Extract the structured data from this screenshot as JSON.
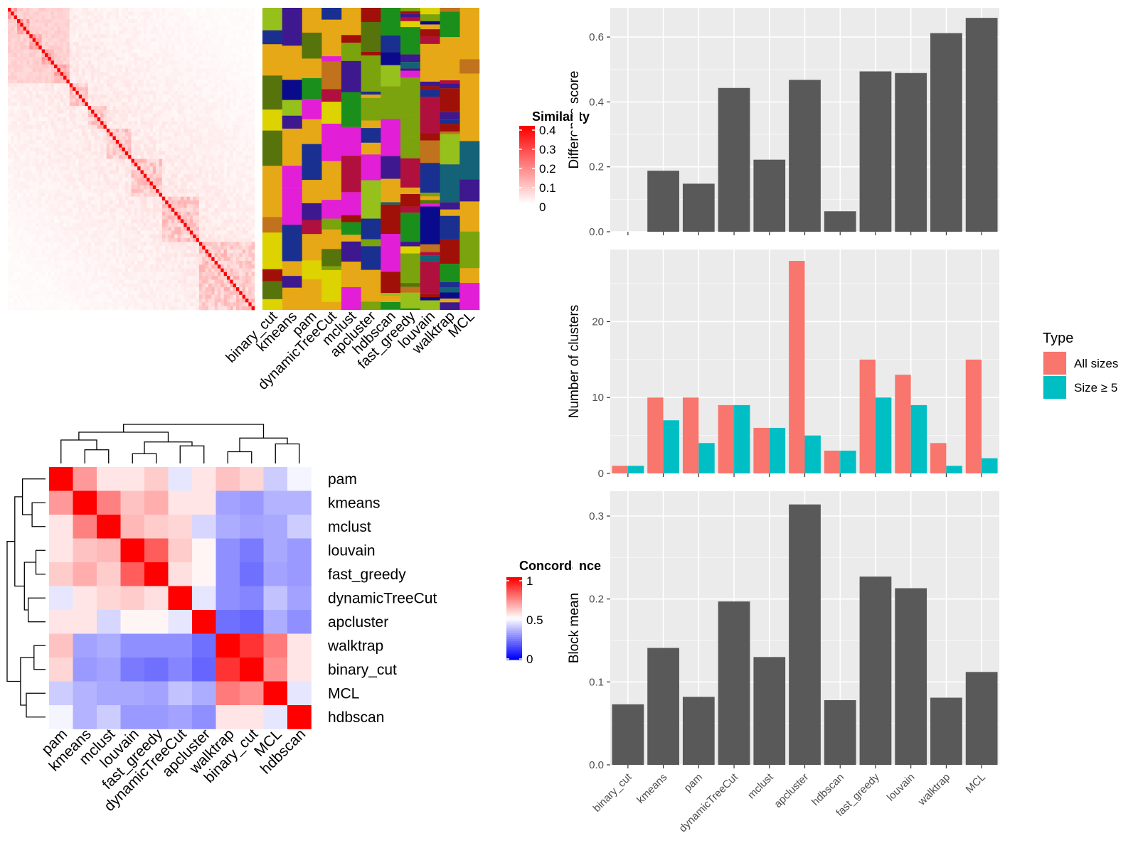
{
  "methods": [
    "binary_cut",
    "kmeans",
    "pam",
    "dynamicTreeCut",
    "mclust",
    "apcluster",
    "hdbscan",
    "fast_greedy",
    "louvain",
    "walktrap",
    "MCL"
  ],
  "similarity_heatmap": {
    "legend_title": "Similarity",
    "legend_ticks": [
      "0.4",
      "0.3",
      "0.2",
      "0.1",
      "0"
    ],
    "range": [
      0,
      0.4
    ],
    "color_low": "#FFFFFF",
    "color_high": "#FF0000"
  },
  "cluster_annotation": {
    "background": "#E6A817",
    "palette": [
      "#E6A817",
      "#DDD300",
      "#A01008",
      "#B0103E",
      "#0A0A8C",
      "#136277",
      "#7AA30E",
      "#56730C",
      "#3D188E",
      "#E21ED6",
      "#C0721C",
      "#1B8F1B",
      "#1A3090",
      "#96C01C"
    ]
  },
  "concordance_heatmap": {
    "legend_title": "Concordance",
    "legend_ticks": [
      "1",
      "0.5",
      "0"
    ],
    "range": [
      0,
      1
    ],
    "color_low": "#0000FF",
    "color_mid": "#FFFFFF",
    "color_high": "#FF0000",
    "order": [
      "pam",
      "kmeans",
      "mclust",
      "louvain",
      "fast_greedy",
      "dynamicTreeCut",
      "apcluster",
      "walktrap",
      "binary_cut",
      "MCL",
      "hdbscan"
    ],
    "matrix": [
      [
        1.0,
        0.7,
        0.55,
        0.55,
        0.6,
        0.45,
        0.55,
        0.62,
        0.58,
        0.4,
        0.48
      ],
      [
        0.7,
        1.0,
        0.75,
        0.62,
        0.66,
        0.55,
        0.55,
        0.32,
        0.3,
        0.35,
        0.35
      ],
      [
        0.55,
        0.75,
        1.0,
        0.64,
        0.6,
        0.58,
        0.42,
        0.34,
        0.32,
        0.33,
        0.4
      ],
      [
        0.55,
        0.62,
        0.64,
        1.0,
        0.82,
        0.6,
        0.52,
        0.28,
        0.24,
        0.33,
        0.3
      ],
      [
        0.6,
        0.66,
        0.6,
        0.82,
        1.0,
        0.56,
        0.52,
        0.28,
        0.22,
        0.32,
        0.3
      ],
      [
        0.45,
        0.55,
        0.58,
        0.6,
        0.56,
        1.0,
        0.45,
        0.28,
        0.26,
        0.38,
        0.32
      ],
      [
        0.55,
        0.55,
        0.42,
        0.52,
        0.52,
        0.45,
        1.0,
        0.22,
        0.2,
        0.34,
        0.28
      ],
      [
        0.62,
        0.32,
        0.34,
        0.28,
        0.28,
        0.28,
        0.22,
        1.0,
        0.9,
        0.76,
        0.55
      ],
      [
        0.58,
        0.3,
        0.32,
        0.24,
        0.22,
        0.26,
        0.2,
        0.9,
        1.0,
        0.72,
        0.55
      ],
      [
        0.4,
        0.35,
        0.33,
        0.33,
        0.32,
        0.38,
        0.34,
        0.76,
        0.72,
        1.0,
        0.45
      ],
      [
        0.48,
        0.35,
        0.4,
        0.3,
        0.3,
        0.32,
        0.28,
        0.55,
        0.55,
        0.45,
        1.0
      ]
    ]
  },
  "chart_data": [
    {
      "type": "bar",
      "title": "",
      "xlabel": "",
      "ylabel": "Difference score",
      "categories": [
        "binary_cut",
        "kmeans",
        "pam",
        "dynamicTreeCut",
        "mclust",
        "apcluster",
        "hdbscan",
        "fast_greedy",
        "louvain",
        "walktrap",
        "MCL"
      ],
      "values": [
        0.0,
        0.188,
        0.148,
        0.443,
        0.222,
        0.468,
        0.063,
        0.494,
        0.489,
        0.612,
        0.659
      ],
      "ylim": [
        0,
        0.69
      ],
      "yticks": [
        0.0,
        0.2,
        0.4,
        0.6
      ],
      "ytick_labels": [
        "0.0",
        "0.2",
        "0.4",
        "0.6"
      ],
      "bar_color": "#595959",
      "grid": true
    },
    {
      "type": "bar",
      "title": "",
      "xlabel": "",
      "ylabel": "Number of clusters",
      "categories": [
        "binary_cut",
        "kmeans",
        "pam",
        "dynamicTreeCut",
        "mclust",
        "apcluster",
        "hdbscan",
        "fast_greedy",
        "louvain",
        "walktrap",
        "MCL"
      ],
      "series": [
        {
          "name": "All sizes",
          "color": "#F8766D",
          "values": [
            1,
            10,
            10,
            9,
            6,
            28,
            3,
            15,
            13,
            4,
            15
          ]
        },
        {
          "name": "Size ≥ 5",
          "color": "#00BFC4",
          "values": [
            1,
            7,
            4,
            9,
            6,
            5,
            3,
            10,
            9,
            1,
            2
          ]
        }
      ],
      "legend_title": "Type",
      "legend_position": "right",
      "ylim": [
        0,
        29.5
      ],
      "yticks": [
        0,
        10,
        20
      ],
      "ytick_labels": [
        "0",
        "10",
        "20"
      ],
      "grid": true
    },
    {
      "type": "bar",
      "title": "",
      "xlabel": "",
      "ylabel": "Block mean",
      "categories": [
        "binary_cut",
        "kmeans",
        "pam",
        "dynamicTreeCut",
        "mclust",
        "apcluster",
        "hdbscan",
        "fast_greedy",
        "louvain",
        "walktrap",
        "MCL"
      ],
      "values": [
        0.073,
        0.141,
        0.082,
        0.197,
        0.13,
        0.314,
        0.078,
        0.227,
        0.213,
        0.081,
        0.112
      ],
      "ylim": [
        0,
        0.33
      ],
      "yticks": [
        0.0,
        0.1,
        0.2,
        0.3
      ],
      "ytick_labels": [
        "0.0",
        "0.1",
        "0.2",
        "0.3"
      ],
      "bar_color": "#595959",
      "grid": true
    }
  ]
}
